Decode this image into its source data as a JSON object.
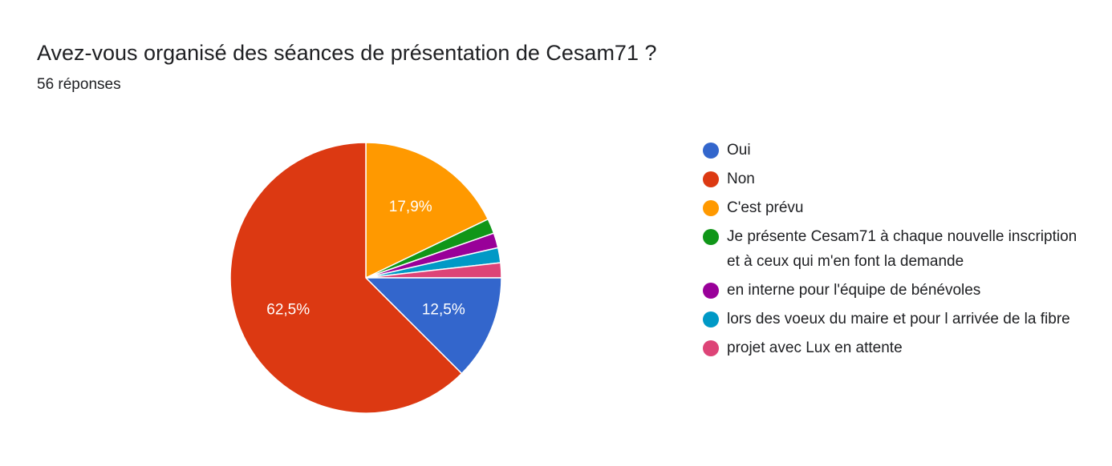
{
  "header": {
    "title": "Avez-vous organisé des séances de présentation de Cesam71 ?",
    "subtitle": "56 réponses"
  },
  "chart_data": {
    "type": "pie",
    "total_responses": 56,
    "categories": [
      "Oui",
      "Non",
      "C'est prévu",
      "Je présente Cesam71 à chaque nouvelle inscription et à ceux qui m'en font la demande",
      "en interne pour l'équipe de bénévoles",
      "lors des voeux du maire et pour l arrivée de la fibre",
      "projet avec Lux en attente"
    ],
    "values": [
      7,
      35,
      10,
      1,
      1,
      1,
      1
    ],
    "percent_labels": [
      "12,5%",
      "62,5%",
      "17,9%",
      "",
      "",
      "",
      ""
    ],
    "colors": [
      "#3366cc",
      "#dc3912",
      "#ff9900",
      "#109618",
      "#990099",
      "#0099c6",
      "#dd4477"
    ],
    "start_angle": "12 o'clock, clockwise from top in legend order starting with C'est prévu",
    "legend_position": "right"
  }
}
